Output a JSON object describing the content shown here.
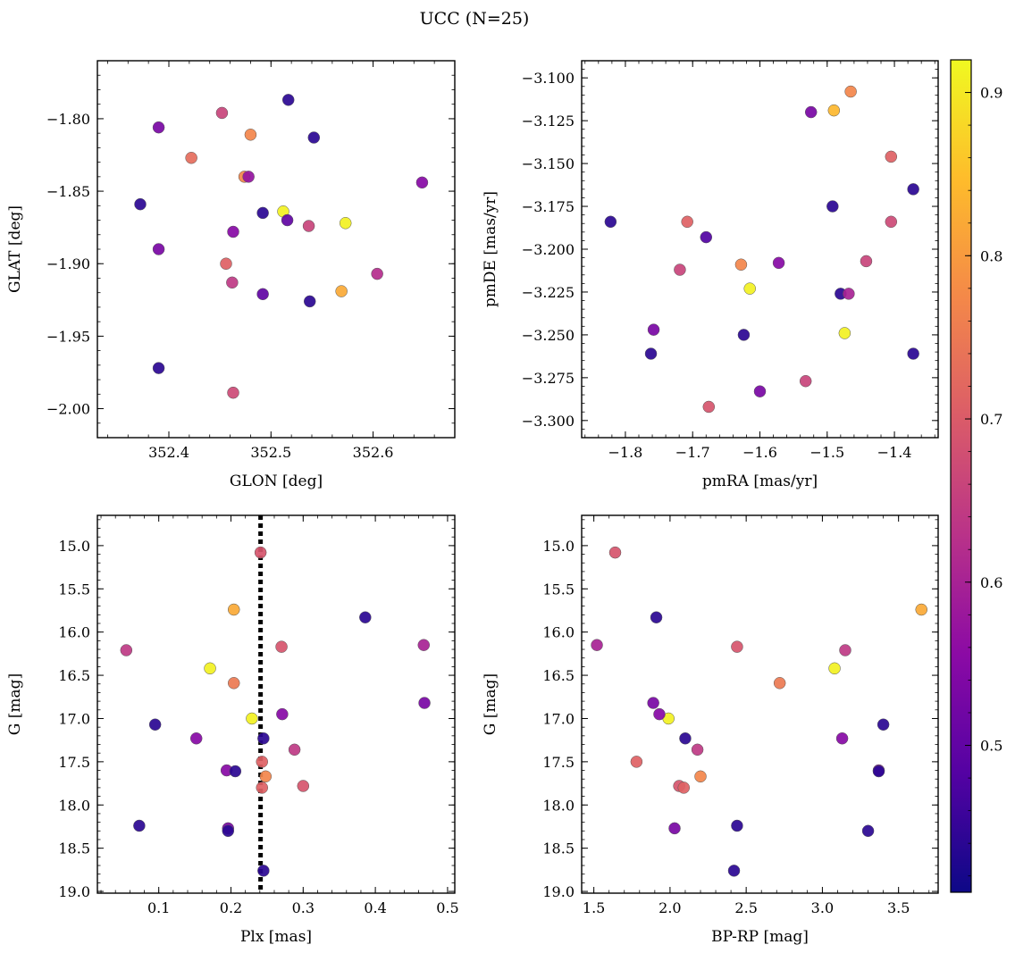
{
  "figure": {
    "title": "UCC (N=25)",
    "colorbar": {
      "colormap": "plasma",
      "range": [
        0.41,
        0.92
      ],
      "ticks": [
        0.5,
        0.6,
        0.7,
        0.8,
        0.9
      ],
      "tick_labels": [
        "0.5",
        "0.6",
        "0.7",
        "0.8",
        "0.9"
      ]
    }
  },
  "chart_data": [
    {
      "type": "scatter",
      "xlabel": "GLON [deg]",
      "ylabel": "GLAT [deg]",
      "xlim": [
        352.33,
        352.68
      ],
      "ylim": [
        -2.02,
        -1.76
      ],
      "y_inverted": false,
      "x_ticks": [
        352.4,
        352.5,
        352.6
      ],
      "x_tick_labels": [
        "352.4",
        "352.5",
        "352.6"
      ],
      "y_ticks": [
        -1.8,
        -1.85,
        -1.9,
        -1.95,
        -2.0
      ],
      "y_tick_labels": [
        "−1.80",
        "−1.85",
        "−1.90",
        "−1.95",
        "−2.00"
      ],
      "x": [
        352.517,
        352.452,
        352.39,
        352.48,
        352.542,
        352.422,
        352.474,
        352.478,
        352.648,
        352.372,
        352.492,
        352.512,
        352.516,
        352.537,
        352.573,
        352.463,
        352.39,
        352.456,
        352.604,
        352.462,
        352.492,
        352.569,
        352.538,
        352.39,
        352.463
      ],
      "y": [
        -1.787,
        -1.796,
        -1.806,
        -1.811,
        -1.813,
        -1.827,
        -1.84,
        -1.84,
        -1.844,
        -1.859,
        -1.865,
        -1.864,
        -1.87,
        -1.874,
        -1.872,
        -1.878,
        -1.89,
        -1.9,
        -1.907,
        -1.913,
        -1.921,
        -1.919,
        -1.926,
        -1.972,
        -1.989
      ],
      "color": [
        0.44,
        0.66,
        0.53,
        0.77,
        0.44,
        0.73,
        0.77,
        0.57,
        0.55,
        0.44,
        0.44,
        0.91,
        0.5,
        0.66,
        0.91,
        0.55,
        0.53,
        0.71,
        0.62,
        0.64,
        0.5,
        0.82,
        0.44,
        0.44,
        0.67
      ]
    },
    {
      "type": "scatter",
      "xlabel": "pmRA [mas/yr]",
      "ylabel": "pmDE [mas/yr]",
      "xlim": [
        -1.865,
        -1.335
      ],
      "ylim": [
        -3.31,
        -3.09
      ],
      "y_inverted": false,
      "x_ticks": [
        -1.8,
        -1.7,
        -1.6,
        -1.5,
        -1.4
      ],
      "x_tick_labels": [
        "−1.8",
        "−1.7",
        "−1.6",
        "−1.5",
        "−1.4"
      ],
      "y_ticks": [
        -3.1,
        -3.125,
        -3.15,
        -3.175,
        -3.2,
        -3.225,
        -3.25,
        -3.275,
        -3.3
      ],
      "y_tick_labels": [
        "−3.100",
        "−3.125",
        "−3.150",
        "−3.175",
        "−3.200",
        "−3.225",
        "−3.250",
        "−3.275",
        "−3.300"
      ],
      "x": [
        -1.465,
        -1.49,
        -1.524,
        -1.405,
        -1.372,
        -1.492,
        -1.822,
        -1.708,
        -1.405,
        -1.68,
        -1.442,
        -1.628,
        -1.572,
        -1.719,
        -1.615,
        -1.48,
        -1.468,
        -1.758,
        -1.474,
        -1.624,
        -1.762,
        -1.372,
        -1.532,
        -1.6,
        -1.676
      ],
      "y": [
        -3.108,
        -3.119,
        -3.12,
        -3.146,
        -3.165,
        -3.175,
        -3.184,
        -3.184,
        -3.184,
        -3.193,
        -3.207,
        -3.209,
        -3.208,
        -3.212,
        -3.223,
        -3.226,
        -3.226,
        -3.247,
        -3.249,
        -3.25,
        -3.261,
        -3.261,
        -3.277,
        -3.283,
        -3.292
      ],
      "color": [
        0.77,
        0.84,
        0.53,
        0.71,
        0.44,
        0.44,
        0.44,
        0.71,
        0.67,
        0.48,
        0.66,
        0.77,
        0.55,
        0.66,
        0.91,
        0.44,
        0.6,
        0.53,
        0.91,
        0.44,
        0.44,
        0.44,
        0.66,
        0.53,
        0.69
      ]
    },
    {
      "type": "scatter",
      "xlabel": "Plx [mas]",
      "ylabel": "G [mag]",
      "xlim": [
        0.015,
        0.51
      ],
      "ylim": [
        19.02,
        14.65
      ],
      "y_inverted": true,
      "vline": 0.241,
      "x_ticks": [
        0.1,
        0.2,
        0.3,
        0.4,
        0.5
      ],
      "x_tick_labels": [
        "0.1",
        "0.2",
        "0.3",
        "0.4",
        "0.5"
      ],
      "y_ticks": [
        15.0,
        15.5,
        16.0,
        16.5,
        17.0,
        17.5,
        18.0,
        18.5,
        19.0
      ],
      "y_tick_labels": [
        "15.0",
        "15.5",
        "16.0",
        "16.5",
        "17.0",
        "17.5",
        "18.0",
        "18.5",
        "19.0"
      ],
      "x": [
        0.241,
        0.204,
        0.386,
        0.467,
        0.055,
        0.27,
        0.171,
        0.204,
        0.468,
        0.229,
        0.271,
        0.095,
        0.152,
        0.288,
        0.245,
        0.243,
        0.194,
        0.206,
        0.248,
        0.3,
        0.243,
        0.073,
        0.196,
        0.196,
        0.245
      ],
      "y": [
        15.08,
        15.74,
        15.83,
        16.15,
        16.21,
        16.17,
        16.42,
        16.59,
        16.82,
        17.0,
        16.95,
        17.07,
        17.23,
        17.36,
        17.23,
        17.5,
        17.6,
        17.61,
        17.67,
        17.78,
        17.8,
        18.24,
        18.27,
        18.3,
        18.76
      ],
      "color": [
        0.69,
        0.82,
        0.44,
        0.6,
        0.64,
        0.69,
        0.91,
        0.75,
        0.53,
        0.91,
        0.55,
        0.44,
        0.55,
        0.64,
        0.44,
        0.71,
        0.55,
        0.44,
        0.77,
        0.69,
        0.71,
        0.44,
        0.53,
        0.44,
        0.44
      ]
    },
    {
      "type": "scatter",
      "xlabel": "BP-RP [mag]",
      "ylabel": "G [mag]",
      "xlim": [
        1.42,
        3.76
      ],
      "ylim": [
        19.02,
        14.65
      ],
      "y_inverted": true,
      "x_ticks": [
        1.5,
        2.0,
        2.5,
        3.0,
        3.5
      ],
      "x_tick_labels": [
        "1.5",
        "2.0",
        "2.5",
        "3.0",
        "3.5"
      ],
      "y_ticks": [
        15.0,
        15.5,
        16.0,
        16.5,
        17.0,
        17.5,
        18.0,
        18.5,
        19.0
      ],
      "y_tick_labels": [
        "15.0",
        "15.5",
        "16.0",
        "16.5",
        "17.0",
        "17.5",
        "18.0",
        "18.5",
        "19.0"
      ],
      "x": [
        1.64,
        3.65,
        1.91,
        1.52,
        3.15,
        2.44,
        3.08,
        2.72,
        1.89,
        1.99,
        1.93,
        3.4,
        2.1,
        3.13,
        2.18,
        1.78,
        3.37,
        3.37,
        2.2,
        2.06,
        2.09,
        2.44,
        2.03,
        3.3,
        2.42
      ],
      "y": [
        15.08,
        15.74,
        15.83,
        16.15,
        16.21,
        16.17,
        16.42,
        16.59,
        16.82,
        17.0,
        16.95,
        17.07,
        17.23,
        17.23,
        17.36,
        17.5,
        17.6,
        17.61,
        17.67,
        17.78,
        17.8,
        18.24,
        18.27,
        18.3,
        18.76
      ],
      "color": [
        0.69,
        0.82,
        0.44,
        0.6,
        0.64,
        0.69,
        0.91,
        0.75,
        0.53,
        0.91,
        0.55,
        0.44,
        0.44,
        0.55,
        0.64,
        0.71,
        0.55,
        0.44,
        0.77,
        0.69,
        0.71,
        0.44,
        0.53,
        0.44,
        0.44
      ]
    }
  ]
}
